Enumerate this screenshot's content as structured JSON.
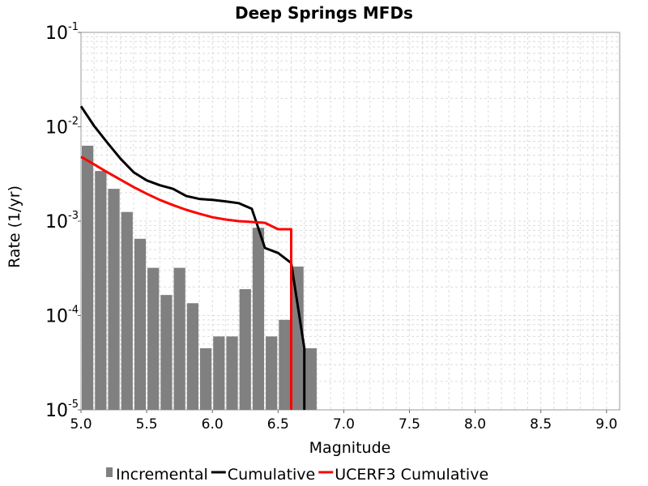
{
  "chart_data": {
    "type": "bar+line",
    "title": "Deep Springs MFDs",
    "xlabel": "Magnitude",
    "ylabel": "Rate (1/yr)",
    "xlim": [
      5.0,
      9.1
    ],
    "ylim": [
      1e-05,
      0.1
    ],
    "yscale": "log",
    "grid": true,
    "legend_position": "bottom",
    "x_ticks": [
      "5.0",
      "5.5",
      "6.0",
      "6.5",
      "7.0",
      "7.5",
      "8.0",
      "8.5",
      "9.0"
    ],
    "y_ticks": [
      {
        "base": "10",
        "exp": "-1"
      },
      {
        "base": "10",
        "exp": "-2"
      },
      {
        "base": "10",
        "exp": "-3"
      },
      {
        "base": "10",
        "exp": "-4"
      },
      {
        "base": "10",
        "exp": "-5"
      }
    ],
    "series": [
      {
        "name": "Incremental",
        "kind": "bar",
        "color": "#808080",
        "x": [
          5.05,
          5.15,
          5.25,
          5.35,
          5.45,
          5.55,
          5.65,
          5.75,
          5.85,
          5.95,
          6.05,
          6.15,
          6.25,
          6.35,
          6.45,
          6.55,
          6.65,
          6.75
        ],
        "values": [
          0.0063,
          0.0034,
          0.0022,
          0.00125,
          0.00065,
          0.00032,
          0.000165,
          0.00032,
          0.000135,
          4.5e-05,
          6e-05,
          6e-05,
          0.00019,
          0.00085,
          6e-05,
          9e-05,
          0.00033,
          4.5e-05
        ]
      },
      {
        "name": "Cumulative",
        "kind": "line",
        "color": "#000000",
        "x": [
          5.0,
          5.1,
          5.2,
          5.3,
          5.4,
          5.5,
          5.6,
          5.7,
          5.8,
          5.9,
          6.0,
          6.1,
          6.2,
          6.3,
          6.4,
          6.5,
          6.6,
          6.7,
          6.7
        ],
        "values": [
          0.0165,
          0.0102,
          0.0068,
          0.0046,
          0.0033,
          0.0027,
          0.0024,
          0.0022,
          0.00185,
          0.00172,
          0.00168,
          0.00162,
          0.00155,
          0.00135,
          0.00052,
          0.00046,
          0.00036,
          4.5e-05,
          1e-05
        ]
      },
      {
        "name": "UCERF3 Cumulative",
        "kind": "line",
        "color": "#ff0000",
        "x": [
          5.0,
          5.1,
          5.2,
          5.3,
          5.4,
          5.5,
          5.6,
          5.7,
          5.8,
          5.9,
          6.0,
          6.1,
          6.2,
          6.3,
          6.4,
          6.5,
          6.6,
          6.6
        ],
        "values": [
          0.0048,
          0.004,
          0.0033,
          0.00275,
          0.0023,
          0.00195,
          0.00168,
          0.00148,
          0.00132,
          0.0012,
          0.0011,
          0.00104,
          0.001,
          0.00098,
          0.00096,
          0.00082,
          0.00082,
          1e-05
        ]
      }
    ]
  }
}
